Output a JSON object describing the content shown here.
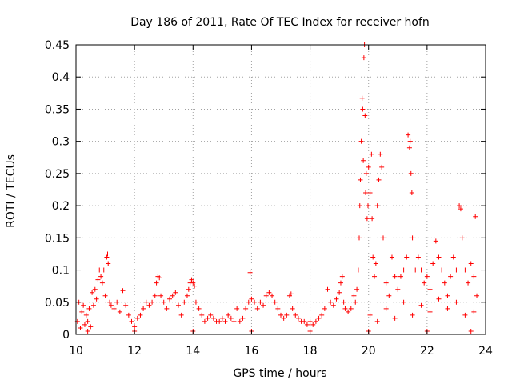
{
  "chart_data": {
    "type": "scatter",
    "title": "Day 186 of 2011, Rate Of TEC Index for receiver hofn",
    "xlabel": "GPS time / hours",
    "ylabel": "ROTI / TECUs",
    "xlim": [
      10,
      24
    ],
    "ylim": [
      0,
      0.45
    ],
    "x_ticks": [
      10,
      12,
      14,
      16,
      18,
      20,
      22,
      24
    ],
    "x_tick_labels": [
      "10",
      "12",
      "14",
      "16",
      "18",
      "20",
      "22",
      "24"
    ],
    "y_ticks": [
      0,
      0.05,
      0.1,
      0.15,
      0.2,
      0.25,
      0.3,
      0.35,
      0.4,
      0.45
    ],
    "y_tick_labels": [
      "0",
      "0.05",
      "0.1",
      "0.15",
      "0.2",
      "0.25",
      "0.3",
      "0.35",
      "0.4",
      "0.45"
    ],
    "grid": true,
    "marker": "plus",
    "color": "#ff0000",
    "series": [
      {
        "name": "ROTI",
        "points": [
          [
            10.05,
            0.02
          ],
          [
            10.1,
            0.05
          ],
          [
            10.15,
            0.01
          ],
          [
            10.2,
            0.035
          ],
          [
            10.25,
            0.045
          ],
          [
            10.3,
            0.015
          ],
          [
            10.35,
            0.03
          ],
          [
            10.4,
            0.02
          ],
          [
            10.45,
            0.04
          ],
          [
            10.5,
            0.012
          ],
          [
            10.55,
            0.065
          ],
          [
            10.6,
            0.045
          ],
          [
            10.65,
            0.07
          ],
          [
            10.7,
            0.055
          ],
          [
            10.75,
            0.085
          ],
          [
            10.8,
            0.1
          ],
          [
            10.85,
            0.09
          ],
          [
            10.9,
            0.08
          ],
          [
            10.95,
            0.1
          ],
          [
            11.0,
            0.06
          ],
          [
            11.05,
            0.12
          ],
          [
            11.08,
            0.125
          ],
          [
            11.1,
            0.11
          ],
          [
            11.15,
            0.05
          ],
          [
            11.2,
            0.045
          ],
          [
            11.3,
            0.04
          ],
          [
            11.4,
            0.05
          ],
          [
            11.5,
            0.035
          ],
          [
            11.6,
            0.068
          ],
          [
            11.7,
            0.045
          ],
          [
            11.8,
            0.03
          ],
          [
            11.9,
            0.02
          ],
          [
            12.0,
            0.012
          ],
          [
            12.1,
            0.025
          ],
          [
            12.2,
            0.03
          ],
          [
            12.3,
            0.04
          ],
          [
            12.4,
            0.05
          ],
          [
            12.5,
            0.045
          ],
          [
            12.6,
            0.05
          ],
          [
            12.7,
            0.06
          ],
          [
            12.75,
            0.08
          ],
          [
            12.8,
            0.09
          ],
          [
            12.85,
            0.088
          ],
          [
            12.9,
            0.06
          ],
          [
            13.0,
            0.05
          ],
          [
            13.1,
            0.04
          ],
          [
            13.2,
            0.055
          ],
          [
            13.3,
            0.06
          ],
          [
            13.4,
            0.065
          ],
          [
            13.5,
            0.045
          ],
          [
            13.6,
            0.03
          ],
          [
            13.7,
            0.05
          ],
          [
            13.8,
            0.06
          ],
          [
            13.85,
            0.07
          ],
          [
            13.9,
            0.08
          ],
          [
            13.95,
            0.085
          ],
          [
            14.0,
            0.08
          ],
          [
            14.05,
            0.075
          ],
          [
            14.1,
            0.05
          ],
          [
            14.2,
            0.04
          ],
          [
            14.3,
            0.03
          ],
          [
            14.4,
            0.02
          ],
          [
            14.5,
            0.025
          ],
          [
            14.6,
            0.03
          ],
          [
            14.7,
            0.025
          ],
          [
            14.8,
            0.02
          ],
          [
            14.9,
            0.02
          ],
          [
            15.0,
            0.025
          ],
          [
            15.1,
            0.02
          ],
          [
            15.2,
            0.03
          ],
          [
            15.3,
            0.025
          ],
          [
            15.4,
            0.02
          ],
          [
            15.5,
            0.04
          ],
          [
            15.6,
            0.02
          ],
          [
            15.7,
            0.025
          ],
          [
            15.8,
            0.04
          ],
          [
            15.9,
            0.05
          ],
          [
            15.95,
            0.096
          ],
          [
            16.0,
            0.055
          ],
          [
            16.1,
            0.05
          ],
          [
            16.2,
            0.04
          ],
          [
            16.3,
            0.05
          ],
          [
            16.4,
            0.045
          ],
          [
            16.5,
            0.06
          ],
          [
            16.6,
            0.065
          ],
          [
            16.7,
            0.06
          ],
          [
            16.8,
            0.05
          ],
          [
            16.9,
            0.04
          ],
          [
            17.0,
            0.03
          ],
          [
            17.1,
            0.025
          ],
          [
            17.2,
            0.03
          ],
          [
            17.3,
            0.06
          ],
          [
            17.35,
            0.063
          ],
          [
            17.4,
            0.04
          ],
          [
            17.5,
            0.03
          ],
          [
            17.6,
            0.025
          ],
          [
            17.7,
            0.02
          ],
          [
            17.8,
            0.02
          ],
          [
            17.9,
            0.015
          ],
          [
            18.0,
            0.02
          ],
          [
            18.1,
            0.015
          ],
          [
            18.2,
            0.02
          ],
          [
            18.3,
            0.025
          ],
          [
            18.4,
            0.03
          ],
          [
            18.5,
            0.04
          ],
          [
            18.6,
            0.07
          ],
          [
            18.7,
            0.05
          ],
          [
            18.8,
            0.045
          ],
          [
            18.9,
            0.055
          ],
          [
            19.0,
            0.065
          ],
          [
            19.05,
            0.08
          ],
          [
            19.1,
            0.09
          ],
          [
            19.15,
            0.05
          ],
          [
            19.2,
            0.04
          ],
          [
            19.3,
            0.035
          ],
          [
            19.4,
            0.04
          ],
          [
            19.5,
            0.06
          ],
          [
            19.55,
            0.05
          ],
          [
            19.6,
            0.07
          ],
          [
            19.65,
            0.1
          ],
          [
            19.68,
            0.15
          ],
          [
            19.7,
            0.2
          ],
          [
            19.72,
            0.24
          ],
          [
            19.75,
            0.3
          ],
          [
            19.78,
            0.367
          ],
          [
            19.8,
            0.35
          ],
          [
            19.82,
            0.27
          ],
          [
            19.84,
            0.43
          ],
          [
            19.86,
            0.45
          ],
          [
            19.88,
            0.34
          ],
          [
            19.9,
            0.22
          ],
          [
            19.92,
            0.25
          ],
          [
            19.95,
            0.18
          ],
          [
            19.98,
            0.2
          ],
          [
            20.0,
            0.26
          ],
          [
            20.05,
            0.22
          ],
          [
            20.1,
            0.28
          ],
          [
            20.12,
            0.18
          ],
          [
            20.15,
            0.12
          ],
          [
            20.2,
            0.09
          ],
          [
            20.25,
            0.11
          ],
          [
            20.3,
            0.2
          ],
          [
            20.35,
            0.24
          ],
          [
            20.4,
            0.28
          ],
          [
            20.45,
            0.26
          ],
          [
            20.5,
            0.15
          ],
          [
            20.6,
            0.08
          ],
          [
            20.7,
            0.06
          ],
          [
            20.8,
            0.12
          ],
          [
            20.9,
            0.09
          ],
          [
            21.0,
            0.07
          ],
          [
            21.1,
            0.09
          ],
          [
            21.2,
            0.1
          ],
          [
            21.3,
            0.12
          ],
          [
            21.35,
            0.31
          ],
          [
            21.4,
            0.29
          ],
          [
            21.42,
            0.3
          ],
          [
            21.45,
            0.25
          ],
          [
            21.48,
            0.22
          ],
          [
            21.5,
            0.15
          ],
          [
            21.6,
            0.1
          ],
          [
            21.7,
            0.12
          ],
          [
            21.8,
            0.1
          ],
          [
            21.9,
            0.08
          ],
          [
            22.0,
            0.09
          ],
          [
            22.1,
            0.07
          ],
          [
            22.2,
            0.11
          ],
          [
            22.3,
            0.145
          ],
          [
            22.4,
            0.12
          ],
          [
            22.5,
            0.1
          ],
          [
            22.6,
            0.08
          ],
          [
            22.7,
            0.06
          ],
          [
            22.8,
            0.09
          ],
          [
            22.9,
            0.12
          ],
          [
            23.0,
            0.1
          ],
          [
            23.1,
            0.2
          ],
          [
            23.15,
            0.195
          ],
          [
            23.2,
            0.15
          ],
          [
            23.3,
            0.1
          ],
          [
            23.4,
            0.08
          ],
          [
            23.5,
            0.11
          ],
          [
            23.6,
            0.09
          ],
          [
            23.65,
            0.183
          ],
          [
            23.7,
            0.06
          ],
          [
            20.05,
            0.03
          ],
          [
            20.3,
            0.02
          ],
          [
            20.6,
            0.04
          ],
          [
            20.9,
            0.025
          ],
          [
            21.2,
            0.05
          ],
          [
            21.5,
            0.03
          ],
          [
            21.8,
            0.045
          ],
          [
            22.1,
            0.035
          ],
          [
            22.4,
            0.055
          ],
          [
            22.7,
            0.04
          ],
          [
            23.0,
            0.05
          ],
          [
            23.3,
            0.03
          ],
          [
            23.6,
            0.035
          ],
          [
            10.4,
            0.005
          ],
          [
            12.0,
            0.005
          ],
          [
            14.0,
            0.005
          ],
          [
            16.0,
            0.005
          ],
          [
            18.0,
            0.005
          ],
          [
            20.0,
            0.005
          ],
          [
            22.0,
            0.005
          ],
          [
            23.5,
            0.005
          ]
        ]
      }
    ]
  }
}
